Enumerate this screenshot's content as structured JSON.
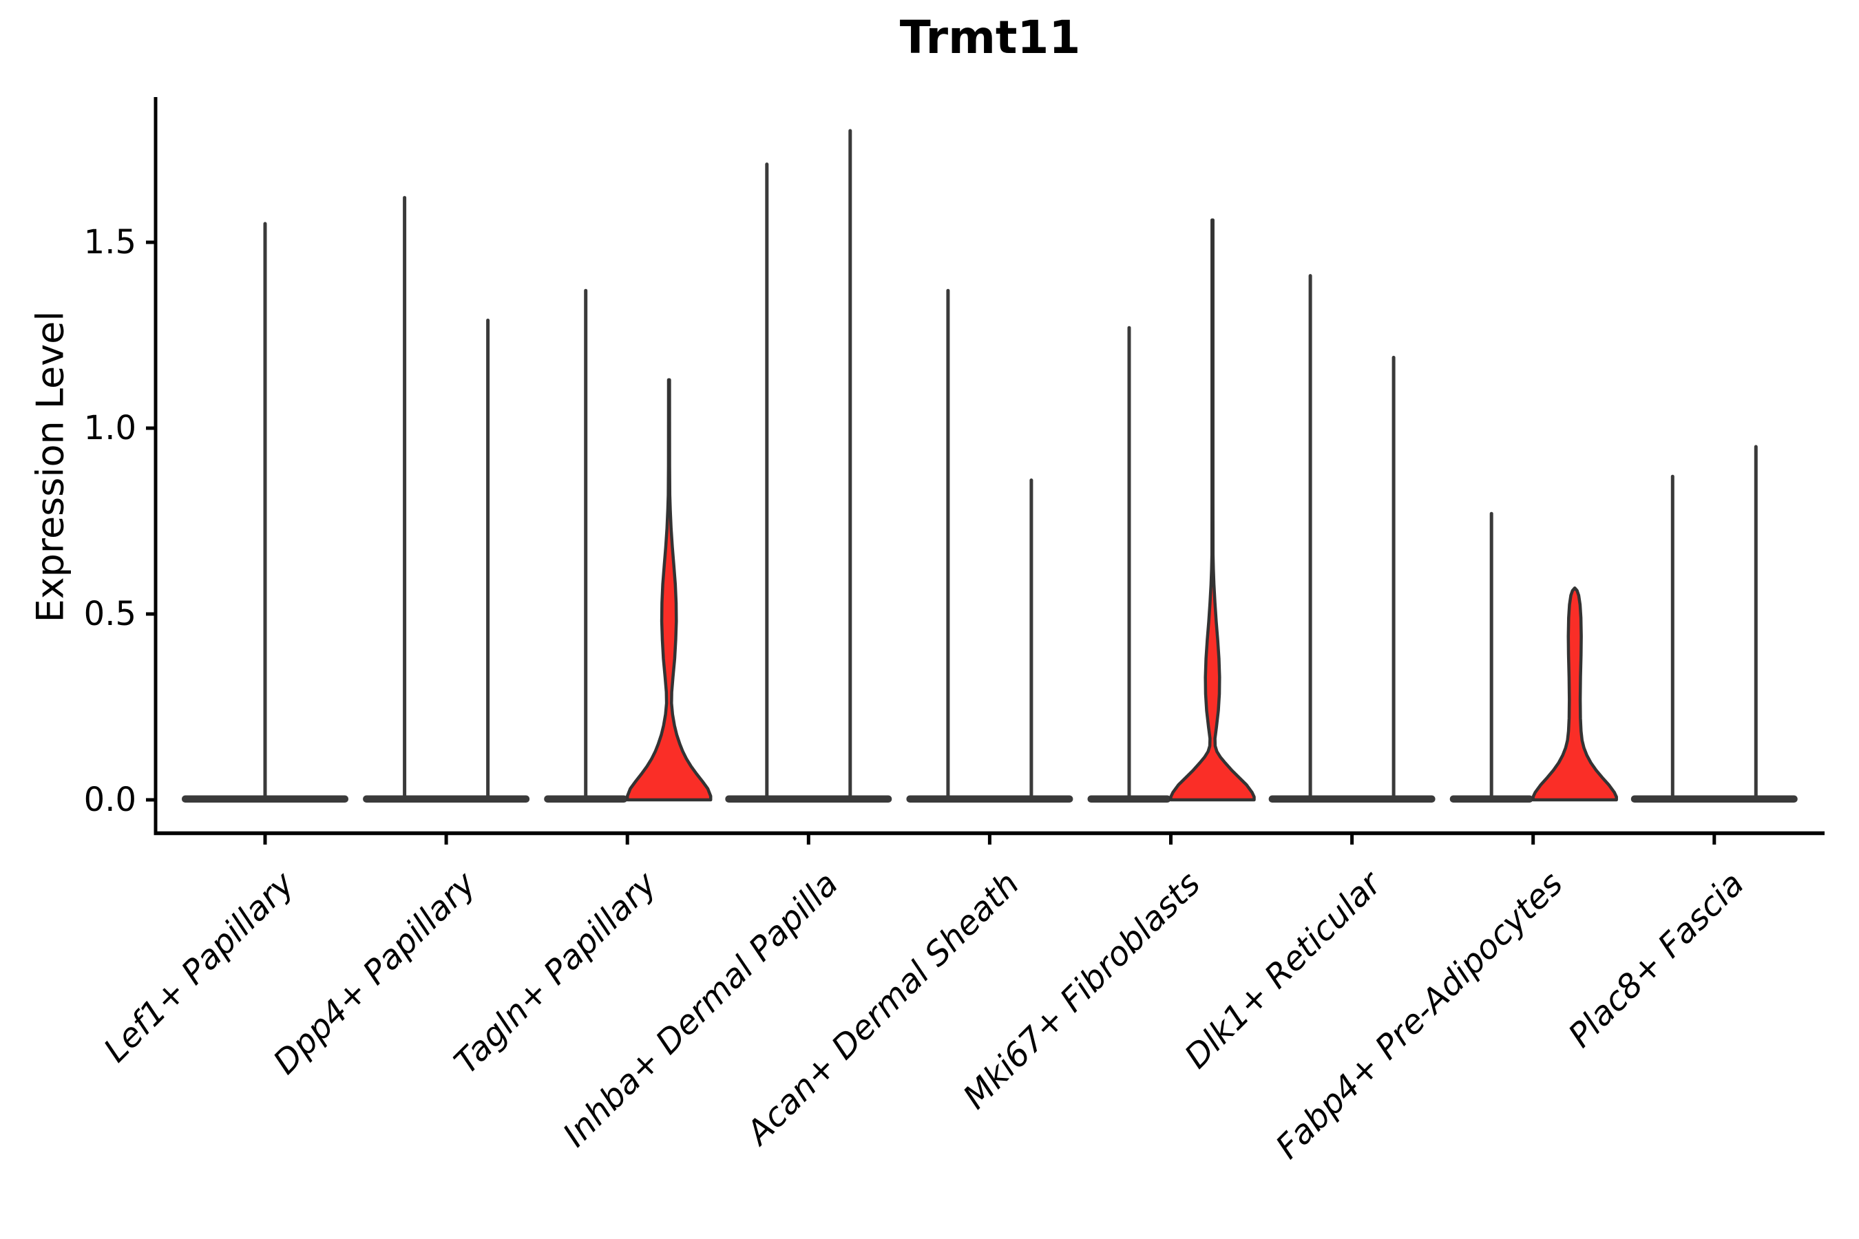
{
  "chart_data": {
    "type": "violin",
    "title": "Trmt11",
    "ylabel": "Expression Level",
    "xlabel": "",
    "y_ticks": [
      0.0,
      0.5,
      1.0,
      1.5
    ],
    "y_tick_labels": [
      "0.0",
      "0.5",
      "1.0",
      "1.5"
    ],
    "ylim": [
      0,
      1.9
    ],
    "grid": false,
    "legend": "none",
    "colors": {
      "violin_fill": "#fa2e27",
      "violin_outline": "#333333",
      "spike": "#3a3a3a",
      "spine": "#000000",
      "text": "#000000"
    },
    "categories": [
      "Lef1+ Papillary",
      "Dpp4+ Papillary",
      "Tagln+ Papillary",
      "Inhba+ Dermal Papilla",
      "Acan+ Dermal Sheath",
      "Mki67+ Fibroblasts",
      "Dlk1+ Reticular",
      "Fabp4+ Pre-Adipocytes",
      "Plac8+ Fascia"
    ],
    "violins": [
      {
        "category": "Lef1+ Papillary",
        "cells": [
          {
            "side": "center",
            "kind": "spike",
            "max": 1.55,
            "bulk_at_zero": true
          }
        ]
      },
      {
        "category": "Dpp4+ Papillary",
        "cells": [
          {
            "side": "left",
            "kind": "spike",
            "max": 1.62,
            "bulk_at_zero": true
          },
          {
            "side": "right",
            "kind": "spike",
            "max": 1.29,
            "bulk_at_zero": true
          }
        ]
      },
      {
        "category": "Tagln+ Papillary",
        "cells": [
          {
            "side": "left",
            "kind": "spike",
            "max": 1.37,
            "bulk_at_zero": true
          },
          {
            "side": "right",
            "kind": "filled",
            "max": 1.13,
            "bulk_at_zero": true,
            "profile": [
              [
                0.0,
                1.0
              ],
              [
                0.01,
                1.0
              ],
              [
                0.03,
                0.93
              ],
              [
                0.05,
                0.8
              ],
              [
                0.07,
                0.66
              ],
              [
                0.09,
                0.53
              ],
              [
                0.11,
                0.42
              ],
              [
                0.13,
                0.33
              ],
              [
                0.15,
                0.26
              ],
              [
                0.175,
                0.185
              ],
              [
                0.2,
                0.13
              ],
              [
                0.23,
                0.085
              ],
              [
                0.26,
                0.06
              ],
              [
                0.29,
                0.065
              ],
              [
                0.33,
                0.095
              ],
              [
                0.38,
                0.135
              ],
              [
                0.43,
                0.16
              ],
              [
                0.48,
                0.175
              ],
              [
                0.53,
                0.17
              ],
              [
                0.58,
                0.15
              ],
              [
                0.63,
                0.115
              ],
              [
                0.68,
                0.08
              ],
              [
                0.73,
                0.05
              ],
              [
                0.78,
                0.03
              ],
              [
                0.82,
                0.018
              ],
              [
                0.9,
                0.013
              ],
              [
                1.13,
                0.012
              ]
            ]
          }
        ]
      },
      {
        "category": "Inhba+ Dermal Papilla",
        "cells": [
          {
            "side": "left",
            "kind": "spike",
            "max": 1.71,
            "bulk_at_zero": true
          },
          {
            "side": "right",
            "kind": "spike",
            "max": 1.8,
            "bulk_at_zero": true
          }
        ]
      },
      {
        "category": "Acan+ Dermal Sheath",
        "cells": [
          {
            "side": "left",
            "kind": "spike",
            "max": 1.37,
            "bulk_at_zero": true
          },
          {
            "side": "right",
            "kind": "spike",
            "max": 0.86,
            "bulk_at_zero": true
          }
        ]
      },
      {
        "category": "Mki67+ Fibroblasts",
        "cells": [
          {
            "side": "left",
            "kind": "spike",
            "max": 1.27,
            "bulk_at_zero": true
          },
          {
            "side": "right",
            "kind": "filled",
            "max": 1.56,
            "bulk_at_zero": true,
            "profile": [
              [
                0.0,
                1.0
              ],
              [
                0.008,
                1.0
              ],
              [
                0.02,
                0.95
              ],
              [
                0.04,
                0.82
              ],
              [
                0.06,
                0.64
              ],
              [
                0.08,
                0.46
              ],
              [
                0.1,
                0.3
              ],
              [
                0.115,
                0.19
              ],
              [
                0.13,
                0.105
              ],
              [
                0.145,
                0.065
              ],
              [
                0.165,
                0.06
              ],
              [
                0.195,
                0.095
              ],
              [
                0.24,
                0.14
              ],
              [
                0.285,
                0.165
              ],
              [
                0.33,
                0.17
              ],
              [
                0.38,
                0.155
              ],
              [
                0.43,
                0.125
              ],
              [
                0.48,
                0.09
              ],
              [
                0.53,
                0.06
              ],
              [
                0.58,
                0.035
              ],
              [
                0.62,
                0.022
              ],
              [
                0.66,
                0.014
              ],
              [
                0.8,
                0.012
              ],
              [
                1.56,
                0.012
              ]
            ]
          }
        ]
      },
      {
        "category": "Dlk1+ Reticular",
        "cells": [
          {
            "side": "left",
            "kind": "spike",
            "max": 1.41,
            "bulk_at_zero": true
          },
          {
            "side": "right",
            "kind": "spike",
            "max": 1.19,
            "bulk_at_zero": true
          }
        ]
      },
      {
        "category": "Fabp4+ Pre-Adipocytes",
        "cells": [
          {
            "side": "left",
            "kind": "spike",
            "max": 0.77,
            "bulk_at_zero": true
          },
          {
            "side": "right",
            "kind": "filled",
            "max": 0.57,
            "bulk_at_zero": true,
            "profile": [
              [
                0.0,
                1.0
              ],
              [
                0.008,
                1.0
              ],
              [
                0.02,
                0.95
              ],
              [
                0.04,
                0.82
              ],
              [
                0.06,
                0.66
              ],
              [
                0.08,
                0.51
              ],
              [
                0.1,
                0.385
              ],
              [
                0.12,
                0.29
              ],
              [
                0.14,
                0.22
              ],
              [
                0.16,
                0.175
              ],
              [
                0.185,
                0.15
              ],
              [
                0.22,
                0.135
              ],
              [
                0.27,
                0.13
              ],
              [
                0.33,
                0.138
              ],
              [
                0.39,
                0.15
              ],
              [
                0.44,
                0.155
              ],
              [
                0.49,
                0.147
              ],
              [
                0.525,
                0.128
              ],
              [
                0.55,
                0.095
              ],
              [
                0.563,
                0.055
              ],
              [
                0.57,
                0.0
              ]
            ]
          }
        ]
      },
      {
        "category": "Plac8+ Fascia",
        "cells": [
          {
            "side": "left",
            "kind": "spike",
            "max": 0.87,
            "bulk_at_zero": true
          },
          {
            "side": "right",
            "kind": "spike",
            "max": 0.95,
            "bulk_at_zero": true
          }
        ]
      }
    ]
  }
}
